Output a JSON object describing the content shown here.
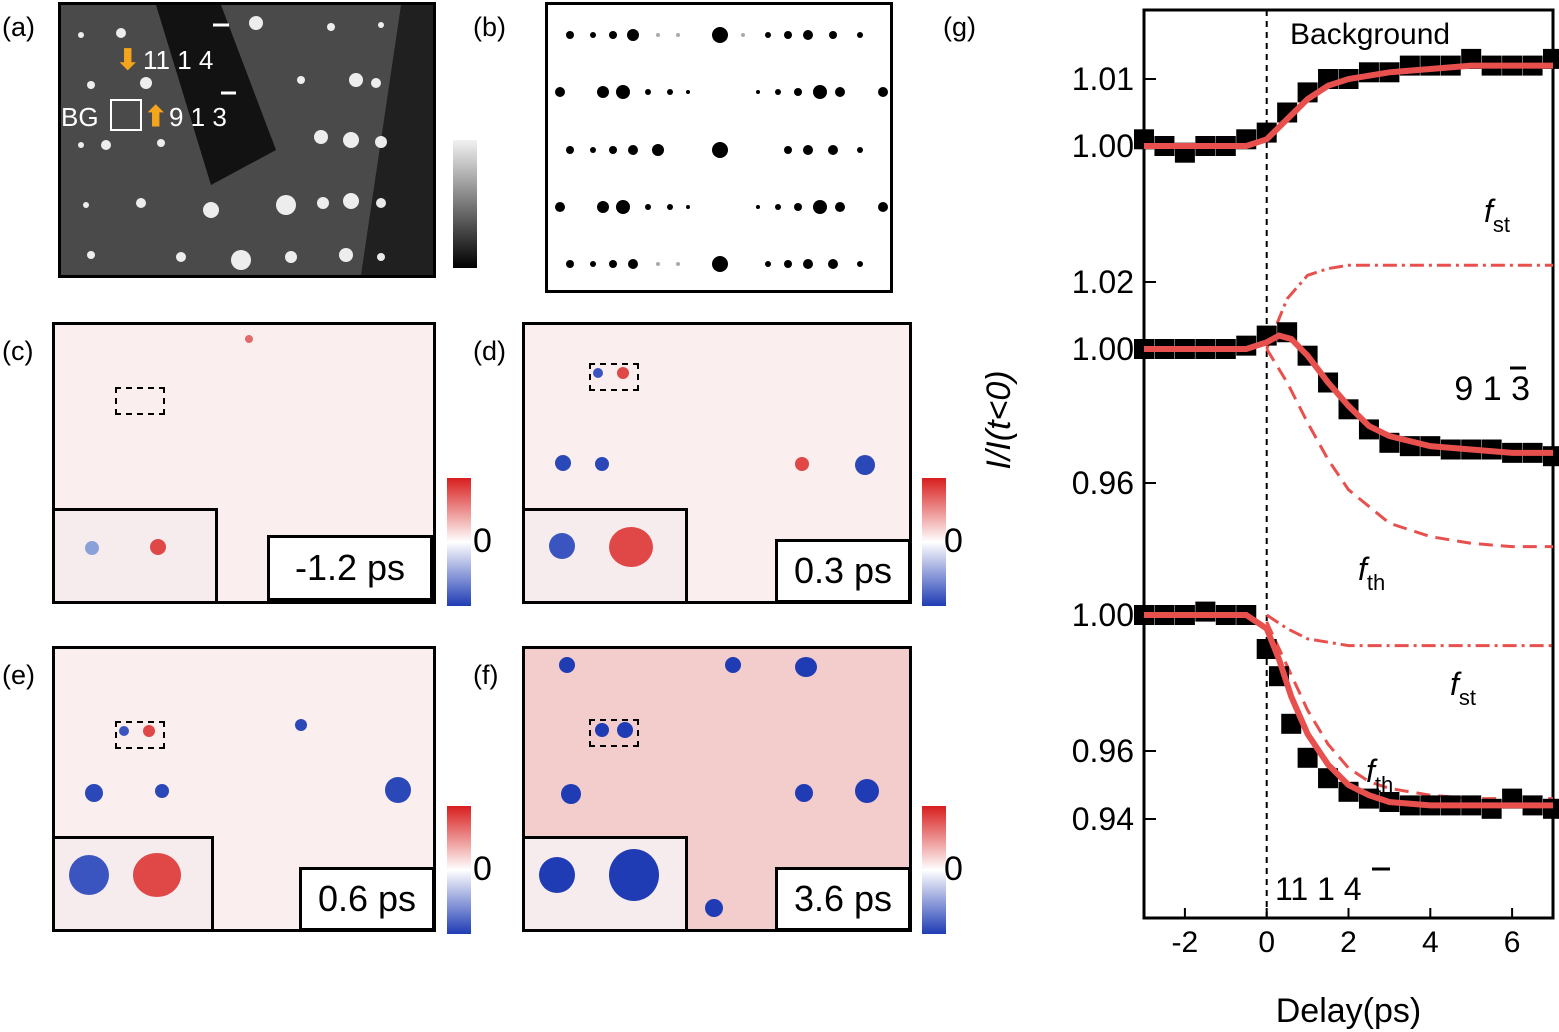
{
  "panels": {
    "a": {
      "label": "(a)",
      "annotations": {
        "top_index": "11 1 4",
        "mid_index": "9 1 3",
        "bg": "BG"
      }
    },
    "b": {
      "label": "(b)"
    },
    "c": {
      "label": "(c)",
      "time": "-1.2 ps",
      "zero": "0"
    },
    "d": {
      "label": "(d)",
      "time": "0.3 ps",
      "zero": "0"
    },
    "e": {
      "label": "(e)",
      "time": "0.6 ps",
      "zero": "0"
    },
    "f": {
      "label": "(f)",
      "time": "3.6 ps",
      "zero": "0"
    },
    "g": {
      "label": "(g)"
    }
  },
  "colors": {
    "fit": "#e8504e",
    "data": "#000000",
    "arrow": "#f4a51c",
    "map_red": "#d81e1e",
    "map_blue": "#1f3cb4"
  },
  "chart_data": {
    "type": "line",
    "xlabel": "Delay(ps)",
    "ylabel": "I/I(t<0)",
    "xlim": [
      -3,
      7
    ],
    "xticks": [
      -2,
      0,
      2,
      4,
      6
    ],
    "subplots": [
      {
        "annotation": "Background",
        "yticks": [
          1.0,
          1.01
        ],
        "series": [
          {
            "kind": "data",
            "x": [
              -3,
              -2.5,
              -2,
              -1.5,
              -1,
              -0.5,
              0,
              0.5,
              1,
              1.5,
              2,
              2.5,
              3,
              3.5,
              4,
              4.5,
              5,
              5.5,
              6,
              6.5,
              7
            ],
            "values": [
              1.001,
              1.0,
              0.999,
              1.0,
              1.0,
              1.001,
              1.002,
              1.005,
              1.008,
              1.01,
              1.01,
              1.011,
              1.011,
              1.012,
              1.012,
              1.012,
              1.013,
              1.012,
              1.012,
              1.012,
              1.013
            ]
          },
          {
            "kind": "fit",
            "x": [
              -3,
              -1,
              -0.5,
              0,
              0.5,
              1,
              1.5,
              2,
              3,
              4,
              5,
              6,
              7
            ],
            "values": [
              1.0,
              1.0,
              1.0,
              1.001,
              1.004,
              1.007,
              1.009,
              1.01,
              1.011,
              1.0115,
              1.012,
              1.012,
              1.012
            ]
          }
        ]
      },
      {
        "annotation": "9 1 3",
        "yticks": [
          0.96,
          1.0,
          1.02
        ],
        "series": [
          {
            "name": "f_st",
            "kind": "component",
            "x": [
              0,
              0.5,
              1,
              1.5,
              2,
              3,
              4,
              5,
              6,
              7
            ],
            "values": [
              1.0,
              1.015,
              1.022,
              1.024,
              1.025,
              1.025,
              1.025,
              1.025,
              1.025,
              1.025
            ]
          },
          {
            "name": "f_th",
            "kind": "component",
            "x": [
              0,
              0.5,
              1,
              1.5,
              2,
              3,
              4,
              5,
              6,
              7
            ],
            "values": [
              1.0,
              0.99,
              0.978,
              0.967,
              0.958,
              0.948,
              0.944,
              0.942,
              0.941,
              0.941
            ]
          },
          {
            "kind": "data",
            "x": [
              -3,
              -2.5,
              -2,
              -1.5,
              -1,
              -0.5,
              0,
              0.5,
              1,
              1.5,
              2,
              2.5,
              3,
              3.5,
              4,
              4.5,
              5,
              5.5,
              6,
              6.5,
              7
            ],
            "values": [
              1.0,
              1.0,
              1.0,
              1.0,
              1.0,
              1.001,
              1.004,
              1.005,
              0.998,
              0.99,
              0.982,
              0.976,
              0.972,
              0.971,
              0.971,
              0.97,
              0.97,
              0.97,
              0.969,
              0.969,
              0.968
            ]
          },
          {
            "kind": "fit",
            "x": [
              -3,
              -1,
              -0.5,
              0,
              0.3,
              0.6,
              1,
              1.5,
              2,
              2.5,
              3,
              4,
              5,
              6,
              7
            ],
            "values": [
              1.0,
              1.0,
              1.0,
              1.002,
              1.004,
              1.003,
              0.998,
              0.99,
              0.983,
              0.977,
              0.974,
              0.971,
              0.97,
              0.969,
              0.969
            ]
          }
        ]
      },
      {
        "annotation": "11 1 4",
        "yticks": [
          0.94,
          0.96,
          1.0
        ],
        "series": [
          {
            "name": "f_st",
            "kind": "component",
            "x": [
              0,
              0.5,
              1,
              1.5,
              2,
              3,
              4,
              5,
              6,
              7
            ],
            "values": [
              1.0,
              0.996,
              0.993,
              0.992,
              0.991,
              0.991,
              0.991,
              0.991,
              0.991,
              0.991
            ]
          },
          {
            "name": "f_th",
            "kind": "component",
            "x": [
              0,
              0.5,
              1,
              1.5,
              2,
              2.5,
              3,
              4,
              5,
              6,
              7
            ],
            "values": [
              0.998,
              0.985,
              0.972,
              0.962,
              0.955,
              0.951,
              0.949,
              0.947,
              0.946,
              0.946,
              0.946
            ]
          },
          {
            "kind": "data",
            "x": [
              -3,
              -2.5,
              -2,
              -1.5,
              -1,
              -0.5,
              0,
              0.3,
              0.6,
              1,
              1.5,
              2,
              2.5,
              3,
              3.5,
              4,
              4.5,
              5,
              5.5,
              6,
              6.5,
              7
            ],
            "values": [
              1.0,
              1.0,
              1.0,
              1.001,
              1.0,
              1.0,
              0.99,
              0.982,
              0.968,
              0.958,
              0.952,
              0.948,
              0.946,
              0.945,
              0.944,
              0.944,
              0.944,
              0.944,
              0.943,
              0.946,
              0.944,
              0.943
            ]
          },
          {
            "kind": "fit",
            "x": [
              -3,
              -1,
              -0.5,
              0,
              0.3,
              0.6,
              1,
              1.5,
              2,
              2.5,
              3,
              4,
              5,
              6,
              7
            ],
            "values": [
              1.0,
              1.0,
              1.0,
              0.996,
              0.987,
              0.976,
              0.965,
              0.956,
              0.95,
              0.947,
              0.945,
              0.944,
              0.944,
              0.944,
              0.944
            ]
          }
        ]
      }
    ]
  }
}
